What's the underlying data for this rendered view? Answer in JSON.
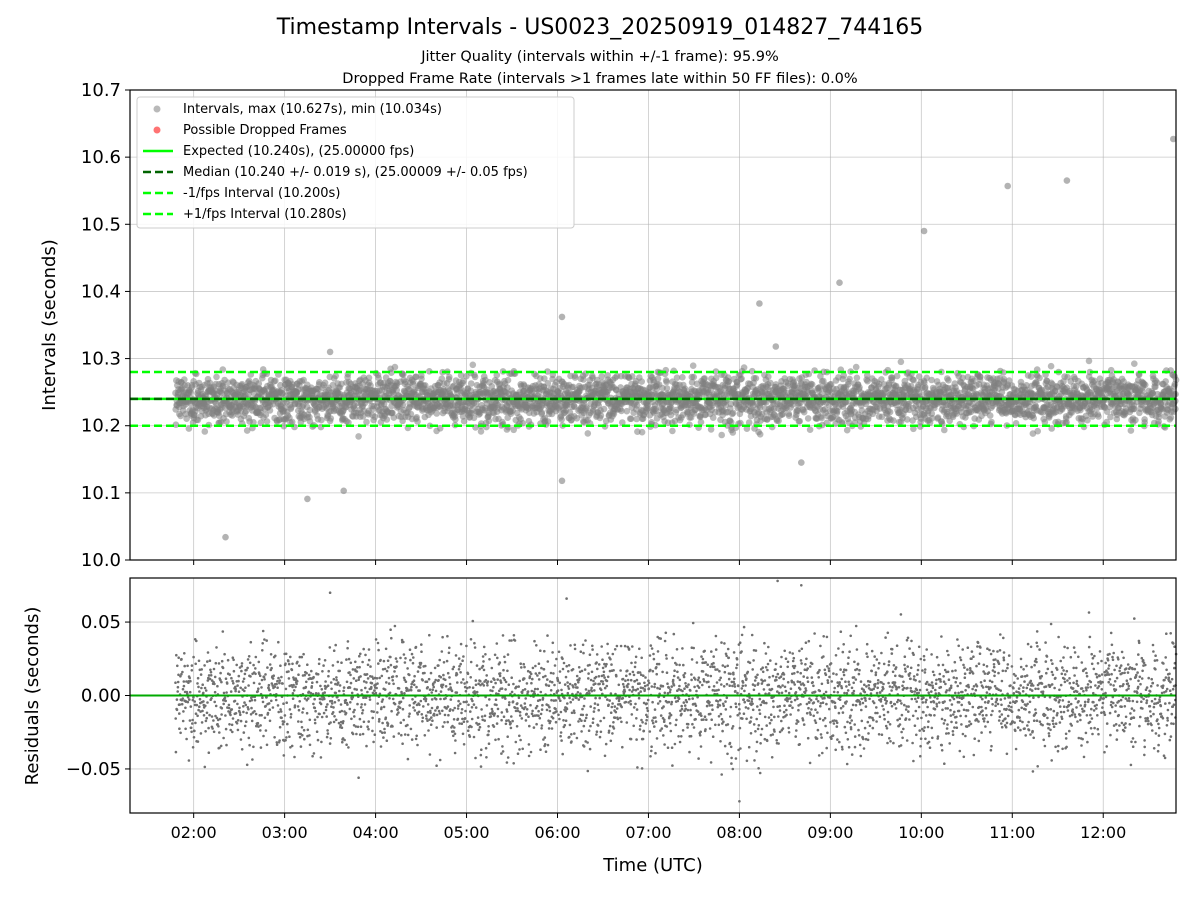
{
  "chart_data": [
    {
      "type": "scatter",
      "title": "Timestamp Intervals - US0023_20250919_014827_744165",
      "subtitle_lines": [
        "Jitter Quality (intervals within +/-1 frame): 95.9%",
        "Dropped Frame Rate (intervals >1 frames late within 50 FF files): 0.0%"
      ],
      "ylabel": "Intervals (seconds)",
      "ylim": [
        10.0,
        10.7
      ],
      "y_ticks": [
        "10.0",
        "10.1",
        "10.2",
        "10.3",
        "10.4",
        "10.5",
        "10.6",
        "10.7"
      ],
      "grid": true,
      "legend_position": "upper-left",
      "legend": [
        "Intervals, max (10.627s), min (10.034s)",
        "Possible Dropped Frames",
        "Expected (10.240s), (25.00000 fps)",
        "Median (10.240 +/- 0.019 s), (25.00009 +/- 0.05 fps)",
        "-1/fps Interval (10.200s)",
        "+1/fps Interval (10.280s)"
      ],
      "reference_lines": {
        "expected": 10.24,
        "median": 10.24,
        "minus_one_frame": 10.2,
        "plus_one_frame": 10.28
      },
      "colors": {
        "points": "#808080",
        "dropped": "#ff0000",
        "expected": "#00ff00",
        "median": "#006400",
        "limits": "#00ff00"
      },
      "series_summary": {
        "center": 10.24,
        "spread_sd": 0.019,
        "count_approx": 3750
      },
      "outliers_x_hours": [
        2.35,
        3.25,
        3.65,
        6.05,
        6.05,
        3.5,
        8.22,
        8.4,
        8.68,
        9.1,
        10.03,
        10.95,
        11.6,
        12.77
      ],
      "outliers_y": [
        10.034,
        10.091,
        10.103,
        10.118,
        10.362,
        10.31,
        10.382,
        10.318,
        10.145,
        10.413,
        10.49,
        10.557,
        10.565,
        10.627
      ]
    },
    {
      "type": "scatter",
      "ylabel": "Residuals (seconds)",
      "xlabel": "Time (UTC)",
      "ylim": [
        -0.08,
        0.08
      ],
      "y_ticks": [
        "−0.05",
        "0.00",
        "0.05"
      ],
      "x_ticks": [
        "02:00",
        "03:00",
        "04:00",
        "05:00",
        "06:00",
        "07:00",
        "08:00",
        "09:00",
        "10:00",
        "11:00",
        "12:00"
      ],
      "x_range": [
        "01:18",
        "12:48"
      ],
      "data_start": "01:48",
      "grid": true,
      "zero_line": 0.0,
      "colors": {
        "points": "#707070",
        "zero_line": "#00aa00"
      },
      "outliers_x_hours": [
        8.42,
        8.68,
        8.0,
        3.5,
        6.1
      ],
      "outliers_y": [
        0.078,
        0.075,
        -0.072,
        0.07,
        0.066
      ]
    }
  ]
}
